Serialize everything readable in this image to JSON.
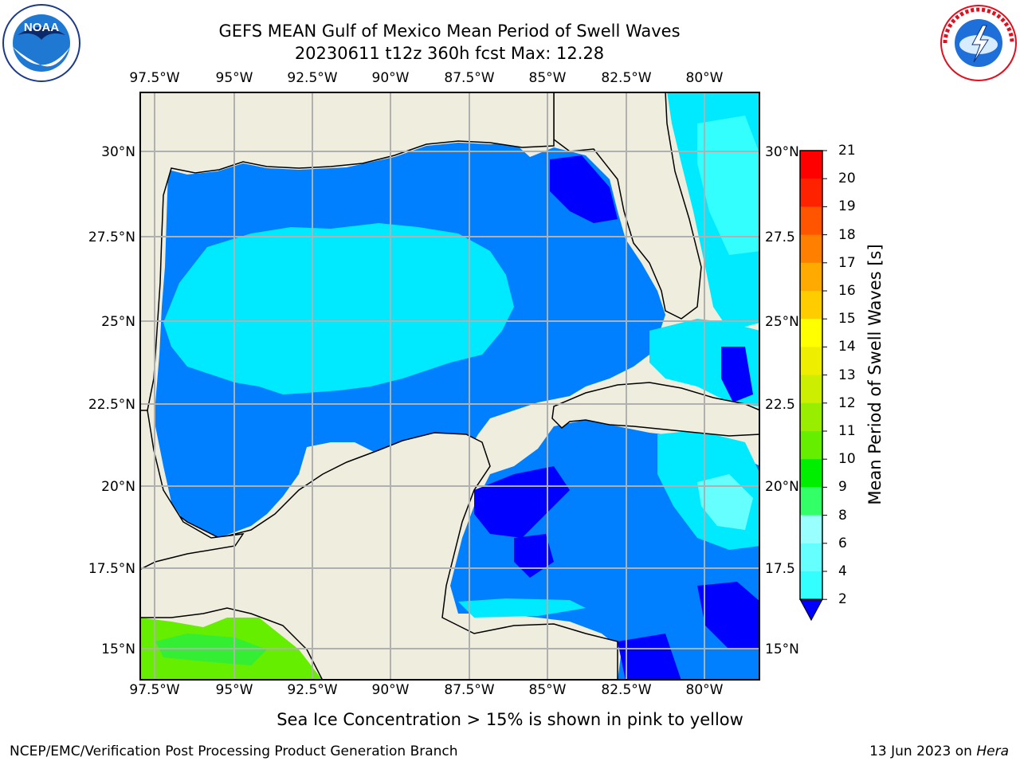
{
  "title": {
    "line1": "GEFS MEAN Gulf of Mexico Mean Period of Swell Waves",
    "line2": "20230611 t12z 360h fcst   Max: 12.28"
  },
  "logos": {
    "left": {
      "icon": "noaa-logo",
      "text": "NOAA"
    },
    "right": {
      "icon": "nws-logo",
      "text": "NATIONAL WEATHER SERVICE"
    }
  },
  "map": {
    "lon_ticks": [
      "97.5°W",
      "95°W",
      "92.5°W",
      "90°W",
      "87.5°W",
      "85°W",
      "82.5°W",
      "80°W"
    ],
    "lat_ticks_left": [
      "30°N",
      "27.5°N",
      "25°N",
      "22.5°N",
      "20°N",
      "17.5°N",
      "15°N"
    ],
    "lat_ticks_right": [
      "30°N",
      "27.5",
      "25°N",
      "22.5",
      "20°N",
      "17.5",
      "15°N"
    ],
    "colors": {
      "land": "#efedde",
      "grid": "#b0b0b0",
      "coast": "#000000"
    }
  },
  "colorbar": {
    "title": "Mean Period of Swell Waves [s]",
    "labels": [
      "2",
      "4",
      "6",
      "8",
      "9",
      "10",
      "11",
      "12",
      "13",
      "14",
      "15",
      "16",
      "17",
      "18",
      "19",
      "20",
      "21"
    ],
    "colors": [
      "#0080ff",
      "#00e6ff",
      "#33ffff",
      "#66ffff",
      "#99ffff",
      "#33ff66",
      "#00ee00",
      "#66ee00",
      "#99ee00",
      "#ccee00",
      "#eeee00",
      "#ffff00",
      "#ffcc00",
      "#ffaa00",
      "#ff8000",
      "#ff5500",
      "#ff2200",
      "#ff0000"
    ],
    "under_color": "#0000ff"
  },
  "note": "Sea Ice Concentration > 15% is shown in pink to yellow",
  "footer": {
    "credit": "NCEP/EMC/Verification Post Processing Product Generation Branch",
    "date": "13 Jun 2023 on",
    "host": "Hera"
  }
}
